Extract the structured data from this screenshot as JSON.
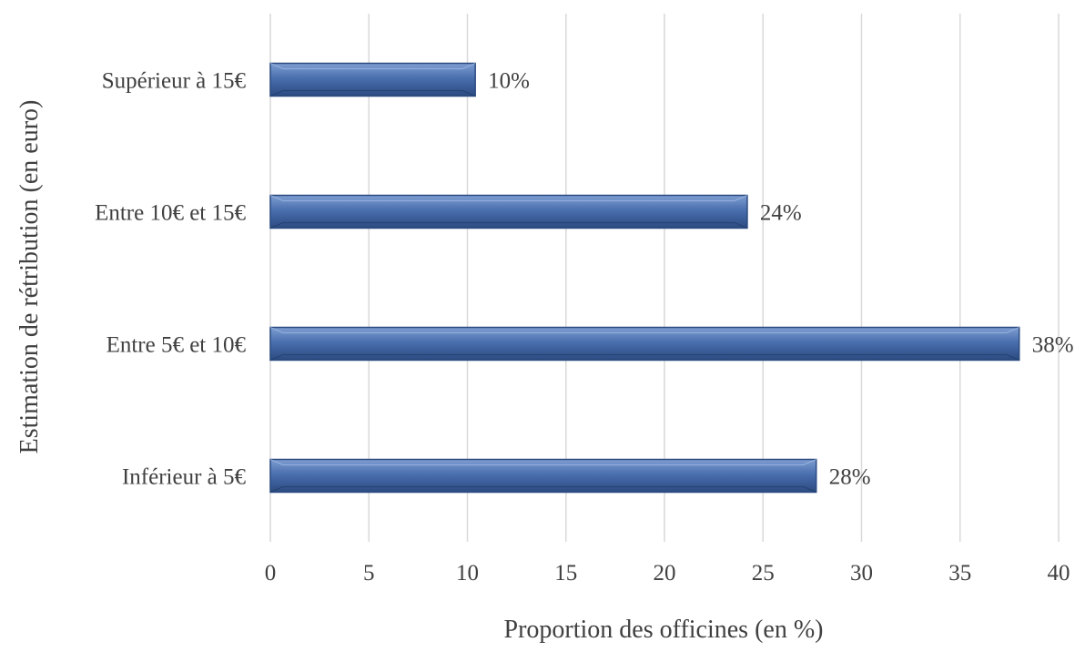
{
  "chart_data": {
    "type": "bar",
    "orientation": "horizontal",
    "categories": [
      "Supérieur à 15€",
      "Entre 10€ et 15€",
      "Entre 5€ et 10€",
      "Inférieur à 5€"
    ],
    "values": [
      10.4,
      24.2,
      38,
      27.7
    ],
    "data_labels": [
      "10%",
      "24%",
      "38%",
      "28%"
    ],
    "title": "",
    "xlabel": "Proportion des officines (en %)",
    "ylabel": "Estimation de rétribution (en euro)",
    "xlim": [
      0,
      40
    ],
    "xticks": [
      0,
      5,
      10,
      15,
      20,
      25,
      30,
      35,
      40
    ],
    "grid": "vertical",
    "legend": "none",
    "colors": {
      "bar": "#4A6FAE",
      "bar_light": "#7E9ED2",
      "bar_dark": "#2B4A80",
      "grid": "#D9D9D9",
      "text": "#404040"
    }
  }
}
